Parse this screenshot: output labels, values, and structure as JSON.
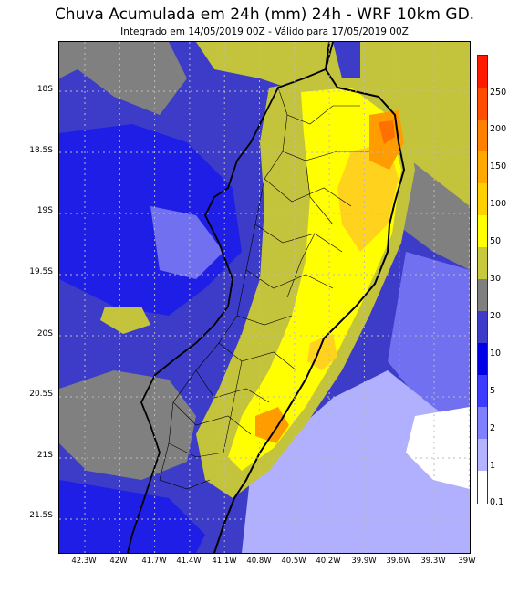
{
  "header": {
    "title": "Chuva Acumulada em 24h (mm) 24h - WRF 10km GD.",
    "subtitle": "Integrado em 14/05/2019 00Z - Válido para 17/05/2019 00Z"
  },
  "axes": {
    "lat_labels": [
      "18S",
      "18.5S",
      "19S",
      "19.5S",
      "20S",
      "20.5S",
      "21S",
      "21.5S"
    ],
    "lon_labels": [
      "42.3W",
      "42W",
      "41.7W",
      "41.4W",
      "41.1W",
      "40.8W",
      "40.5W",
      "40.2W",
      "39.9W",
      "39.6W",
      "39.3W",
      "39W"
    ]
  },
  "colorbar": {
    "labels": [
      "250",
      "200",
      "150",
      "100",
      "50",
      "30",
      "20",
      "10",
      "5",
      "2",
      "1",
      "0.1"
    ],
    "colors": [
      "#ff1a00",
      "#ff4d00",
      "#ff8000",
      "#ffa800",
      "#ffd000",
      "#ffff00",
      "#c8c83c",
      "#7f7f7f",
      "#3c3cc8",
      "#0000e6",
      "#3c3cff",
      "#8080ff",
      "#b3b3ff",
      "#ffffff"
    ]
  },
  "map_colors": {
    "ocean_far": "#3c3cc8",
    "gray": "#808080",
    "olive": "#c4c43c",
    "yellow": "#ffff00",
    "gold": "#ffd21e",
    "orange": "#ff9c00",
    "darkorange": "#ff7000",
    "lightblue": "#b0b0ff",
    "midblue": "#7070f0",
    "blue": "#1e1ee6",
    "white": "#ffffff"
  }
}
